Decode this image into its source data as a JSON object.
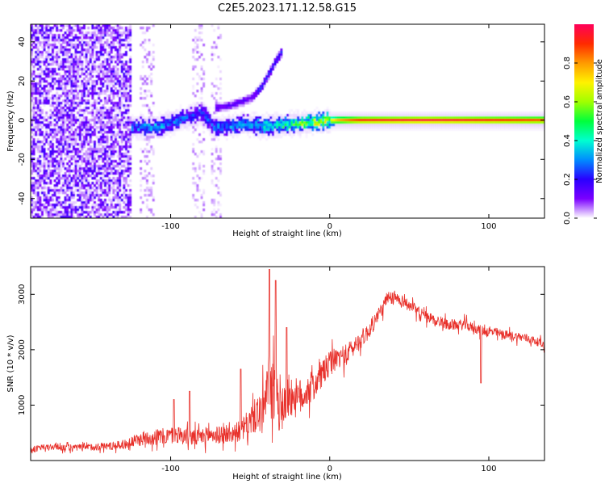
{
  "page": {
    "title": "C2E5.2023.171.12.58.G15"
  },
  "colors": {
    "snr_line": "#e8302a",
    "colormap": [
      "#ffffff",
      "#7b00ff",
      "#2a00ff",
      "#008cff",
      "#00ffd0",
      "#00ff3c",
      "#a0ff00",
      "#fff200",
      "#ff9a00",
      "#ff2a00",
      "#ff005a"
    ]
  },
  "chart_data": [
    {
      "type": "heatmap",
      "title": "C2E5.2023.171.12.58.G15",
      "xlabel": "Height of straight line (km)",
      "ylabel": "Frequency (Hz)",
      "xlim": [
        -188,
        135
      ],
      "ylim": [
        -50,
        49
      ],
      "xticks": [
        -100,
        0,
        100
      ],
      "yticks": [
        -40,
        -20,
        0,
        20,
        40
      ],
      "grid": false,
      "colorbar": {
        "label": "Normalized spectral amplitude",
        "range": [
          0.0,
          1.0
        ],
        "ticks": [
          "0.0",
          "0.2",
          "0.4",
          "0.6",
          "0.8"
        ]
      },
      "features": {
        "noise_region_x": [
          -188,
          -125
        ],
        "weak_noise_bands_x": [
          [
            -120,
            -110
          ],
          [
            -86,
            -78
          ],
          [
            -74,
            -68
          ]
        ],
        "main_ridge": [
          {
            "x": -125,
            "f": -3,
            "amp": 0.3
          },
          {
            "x": -110,
            "f": -4,
            "amp": 0.35
          },
          {
            "x": -95,
            "f": 0,
            "amp": 0.3
          },
          {
            "x": -80,
            "f": 4,
            "amp": 0.25
          },
          {
            "x": -72,
            "f": -4,
            "amp": 0.3
          },
          {
            "x": -55,
            "f": -2,
            "amp": 0.35
          },
          {
            "x": -40,
            "f": -3,
            "amp": 0.4
          },
          {
            "x": -25,
            "f": -2,
            "amp": 0.5
          },
          {
            "x": -10,
            "f": -1,
            "amp": 0.65
          },
          {
            "x": 5,
            "f": 0,
            "amp": 0.8
          },
          {
            "x": 20,
            "f": 0,
            "amp": 0.95
          },
          {
            "x": 60,
            "f": 0,
            "amp": 1.0
          },
          {
            "x": 100,
            "f": 0,
            "amp": 0.95
          },
          {
            "x": 135,
            "f": 0,
            "amp": 0.9
          }
        ],
        "rising_ridge": [
          {
            "x": -72,
            "f": 6
          },
          {
            "x": -60,
            "f": 8
          },
          {
            "x": -48,
            "f": 12
          },
          {
            "x": -42,
            "f": 18
          },
          {
            "x": -38,
            "f": 24
          },
          {
            "x": -34,
            "f": 30
          },
          {
            "x": -30,
            "f": 35
          }
        ]
      }
    },
    {
      "type": "line",
      "xlabel": "Height of straight line (km)",
      "ylabel": "SNR (10 * v/v)",
      "xlim": [
        -188,
        135
      ],
      "ylim": [
        0,
        3500
      ],
      "xticks": [
        -100,
        0,
        100
      ],
      "yticks": [
        1000,
        2000,
        3000
      ],
      "grid": false,
      "x": [
        -188,
        -175,
        -160,
        -145,
        -130,
        -125,
        -115,
        -105,
        -95,
        -85,
        -75,
        -65,
        -55,
        -48,
        -42,
        -38,
        -35,
        -30,
        -25,
        -20,
        -15,
        -10,
        -5,
        0,
        5,
        10,
        15,
        20,
        25,
        30,
        35,
        40,
        45,
        50,
        55,
        60,
        65,
        70,
        75,
        80,
        85,
        90,
        95,
        100,
        105,
        110,
        115,
        120,
        125,
        130,
        135
      ],
      "y": [
        200,
        250,
        230,
        250,
        280,
        330,
        420,
        430,
        470,
        400,
        470,
        450,
        550,
        780,
        900,
        1300,
        1150,
        1000,
        1200,
        1100,
        1250,
        1350,
        1550,
        1750,
        1850,
        1900,
        2050,
        2200,
        2350,
        2600,
        2850,
        2950,
        2900,
        2800,
        2700,
        2600,
        2550,
        2500,
        2450,
        2450,
        2450,
        2400,
        2350,
        2330,
        2300,
        2270,
        2250,
        2230,
        2200,
        2150,
        2080
      ],
      "noise_amplitude": [
        80,
        90,
        90,
        100,
        110,
        150,
        200,
        220,
        230,
        220,
        230,
        220,
        280,
        420,
        600,
        800,
        900,
        700,
        600,
        500,
        450,
        400,
        380,
        320,
        300,
        280,
        250,
        240,
        220,
        200,
        180,
        160,
        150,
        150,
        150,
        150,
        140,
        140,
        140,
        140,
        140,
        130,
        130,
        130,
        130,
        120,
        120,
        120,
        120,
        110,
        110
      ],
      "spikes": [
        {
          "x": -98,
          "y": 1100
        },
        {
          "x": -88,
          "y": 1250
        },
        {
          "x": -56,
          "y": 1650
        },
        {
          "x": -38,
          "y": 3450
        },
        {
          "x": -34,
          "y": 3250
        },
        {
          "x": -27,
          "y": 2400
        },
        {
          "x": 95,
          "y": 1400
        }
      ]
    }
  ]
}
